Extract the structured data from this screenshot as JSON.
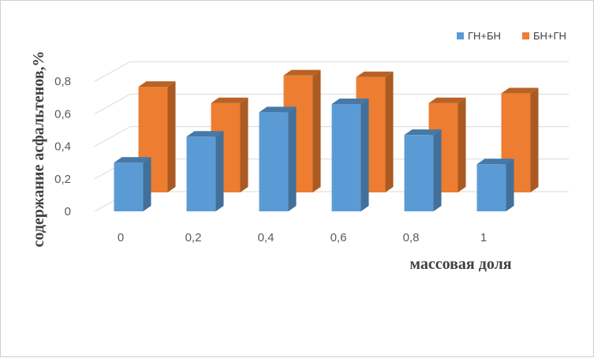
{
  "chart_data": {
    "type": "bar",
    "categories": [
      "0",
      "0,2",
      "0,4",
      "0,6",
      "0,8",
      "1"
    ],
    "series": [
      {
        "name": "ГН+БН",
        "values": [
          0.3,
          0.46,
          0.61,
          0.66,
          0.47,
          0.29
        ],
        "color": "#5B9BD5"
      },
      {
        "name": "БН+ГН",
        "values": [
          0.65,
          0.55,
          0.72,
          0.71,
          0.55,
          0.61
        ],
        "color": "#ED7D31"
      }
    ],
    "ylim": [
      0,
      0.8
    ],
    "yticks": [
      "0",
      "0,2",
      "0,4",
      "0,6",
      "0,8"
    ],
    "xlabel": "массовая доля",
    "ylabel": "содержание асфальтенов,%",
    "legend_position": "top-right",
    "grid": true,
    "style": "3d-column"
  }
}
